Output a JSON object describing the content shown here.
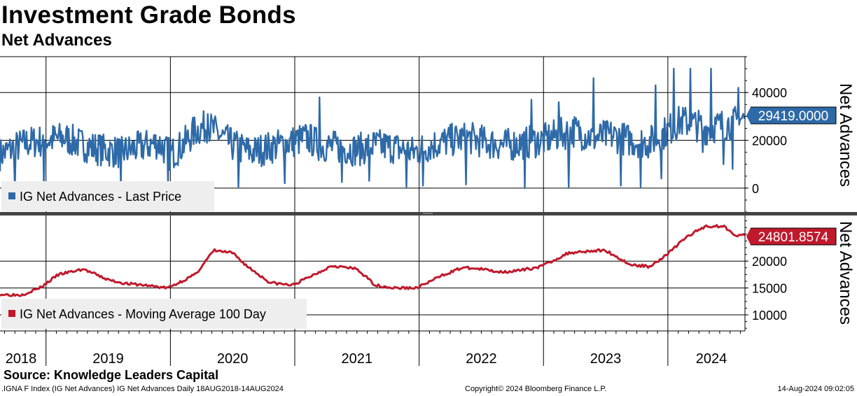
{
  "title": "Investment Grade Bonds",
  "subtitle": "Net Advances",
  "source": "Source: Knowledge Leaders Capital",
  "footer": {
    "left": ".IGNA F Index (IG Net Advances) IG Net Advances  Daily 18AUG2018-14AUG2024",
    "middle": "Copyright© 2024 Bloomberg Finance L.P.",
    "right": "14-Aug-2024 09:02:05"
  },
  "colors": {
    "top_series": "#2e6aa8",
    "bottom_series": "#c0192c",
    "grid": "#000000",
    "legend_bg": "#eeeeee"
  },
  "chart_data": [
    {
      "type": "line",
      "title": "Net Advances",
      "ylabel": "Net Advances",
      "legend": "IG Net Advances - Last Price",
      "legend_position": "bottom-left",
      "last_value_label": "29419.0000",
      "last_value": 29419,
      "ylim": [
        -10000,
        55000
      ],
      "yticks": [
        0,
        20000,
        40000
      ],
      "yticklabels": [
        "0",
        "20000",
        "40000"
      ],
      "x_start": 2018.63,
      "x_end": 2024.62,
      "x": [
        2018.63,
        2018.75,
        2018.85,
        2019.0,
        2019.15,
        2019.3,
        2019.45,
        2019.6,
        2019.75,
        2019.9,
        2020.0,
        2020.1,
        2020.2,
        2020.3,
        2020.4,
        2020.5,
        2020.65,
        2020.8,
        2020.95,
        2021.1,
        2021.2,
        2021.35,
        2021.5,
        2021.65,
        2021.8,
        2021.95,
        2022.1,
        2022.25,
        2022.4,
        2022.55,
        2022.7,
        2022.85,
        2023.0,
        2023.1,
        2023.25,
        2023.4,
        2023.55,
        2023.7,
        2023.85,
        2024.0,
        2024.1,
        2024.2,
        2024.3,
        2024.4,
        2024.5,
        2024.62
      ],
      "values": [
        14000,
        17000,
        19000,
        20000,
        21000,
        18000,
        16000,
        15000,
        17000,
        19000,
        14000,
        18000,
        24000,
        26000,
        22000,
        18000,
        15000,
        17000,
        19000,
        21000,
        18000,
        17000,
        16000,
        18000,
        17000,
        15000,
        18000,
        20000,
        21000,
        19000,
        18000,
        19000,
        20000,
        22000,
        24000,
        21000,
        22000,
        20000,
        19000,
        24000,
        28000,
        27000,
        25000,
        26000,
        27000,
        29419
      ],
      "spikes": [
        [
          2018.75,
          0
        ],
        [
          2018.98,
          500
        ],
        [
          2019.6,
          1000
        ],
        [
          2019.98,
          1500
        ],
        [
          2020.55,
          500
        ],
        [
          2020.92,
          2000
        ],
        [
          2021.38,
          2500
        ],
        [
          2021.6,
          3000
        ],
        [
          2021.9,
          500
        ],
        [
          2022.03,
          1000
        ],
        [
          2022.38,
          1500
        ],
        [
          2022.85,
          0
        ],
        [
          2023.2,
          500
        ],
        [
          2023.62,
          1000
        ],
        [
          2023.78,
          500
        ],
        [
          2023.95,
          4000
        ],
        [
          2020.3,
          31000
        ],
        [
          2021.2,
          38000
        ],
        [
          2022.9,
          37000
        ],
        [
          2023.12,
          36000
        ],
        [
          2023.4,
          46000
        ],
        [
          2023.9,
          43000
        ],
        [
          2024.05,
          50000
        ],
        [
          2024.18,
          50000
        ],
        [
          2024.35,
          50000
        ],
        [
          2024.57,
          42000
        ],
        [
          2024.45,
          10000
        ],
        [
          2024.28,
          15000
        ],
        [
          2024.52,
          8000
        ]
      ]
    },
    {
      "type": "line",
      "title": "Net Advances",
      "ylabel": "Net Advances",
      "legend": "IG Net Advances - Moving Average 100 Day",
      "legend_position": "bottom-left",
      "last_value_label": "24801.8574",
      "last_value": 24801.8574,
      "ylim": [
        7000,
        28500
      ],
      "yticks": [
        10000,
        15000,
        20000
      ],
      "yticklabels": [
        "10000",
        "15000",
        "20000"
      ],
      "x": [
        2018.63,
        2018.8,
        2018.95,
        2019.1,
        2019.3,
        2019.5,
        2019.65,
        2019.8,
        2019.98,
        2020.2,
        2020.35,
        2020.5,
        2020.62,
        2020.8,
        2020.98,
        2021.2,
        2021.3,
        2021.5,
        2021.65,
        2021.8,
        2021.98,
        2022.2,
        2022.35,
        2022.5,
        2022.65,
        2022.8,
        2022.98,
        2023.2,
        2023.3,
        2023.5,
        2023.7,
        2023.85,
        2023.98,
        2024.15,
        2024.3,
        2024.45,
        2024.55,
        2024.62
      ],
      "values": [
        13800,
        13700,
        15000,
        17500,
        18500,
        16500,
        15800,
        15500,
        15000,
        17500,
        22000,
        21500,
        19000,
        16000,
        15500,
        18000,
        19200,
        18500,
        15500,
        15000,
        15000,
        17500,
        18800,
        18500,
        18000,
        18200,
        19000,
        21500,
        21800,
        22000,
        19300,
        19000,
        21000,
        24500,
        26500,
        26500,
        24800,
        24801.8574
      ]
    }
  ],
  "xticklabels": [
    "2018",
    "2019",
    "2020",
    "2021",
    "2022",
    "2023",
    "2024"
  ],
  "xtick_years": [
    2018.5,
    2019.5,
    2020.5,
    2021.5,
    2022.5,
    2023.5,
    2024.35
  ]
}
